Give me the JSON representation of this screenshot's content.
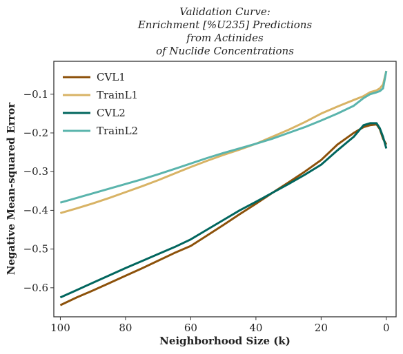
{
  "chart_data": {
    "type": "line",
    "title_lines": [
      "Validation Curve:",
      "Enrichment [%U235] Predictions",
      "from Actinides",
      "of Nuclide Concentrations"
    ],
    "xlabel": "Neighborhood Size (k)",
    "ylabel": "Negative Mean-squared Error",
    "xlim": [
      102,
      -3
    ],
    "ylim": [
      -0.675,
      -0.015
    ],
    "x_inverted": true,
    "xticks": [
      100,
      80,
      60,
      40,
      20,
      0
    ],
    "xtick_labels": [
      "100",
      "80",
      "60",
      "40",
      "20",
      "0"
    ],
    "yticks": [
      -0.1,
      -0.2,
      -0.3,
      -0.4,
      -0.5,
      -0.6
    ],
    "ytick_labels": [
      "−0.1",
      "−0.2",
      "−0.3",
      "−0.4",
      "−0.5",
      "−0.6"
    ],
    "grid": false,
    "legend_position": "top-left",
    "series": [
      {
        "name": "CVL1",
        "color": "#8c510a",
        "x": [
          100,
          95,
          90,
          85,
          80,
          75,
          70,
          65,
          60,
          55,
          50,
          45,
          40,
          35,
          30,
          25,
          20,
          15,
          10,
          7,
          5,
          3,
          2,
          1,
          0
        ],
        "y": [
          -0.645,
          -0.625,
          -0.607,
          -0.588,
          -0.569,
          -0.55,
          -0.53,
          -0.51,
          -0.492,
          -0.465,
          -0.438,
          -0.41,
          -0.383,
          -0.355,
          -0.328,
          -0.3,
          -0.27,
          -0.23,
          -0.2,
          -0.185,
          -0.18,
          -0.178,
          -0.19,
          -0.215,
          -0.23
        ]
      },
      {
        "name": "TrainL1",
        "color": "#d8b365",
        "x": [
          100,
          95,
          90,
          85,
          80,
          75,
          70,
          65,
          60,
          55,
          50,
          45,
          40,
          35,
          30,
          25,
          20,
          15,
          10,
          7,
          5,
          3,
          2,
          1,
          0
        ],
        "y": [
          -0.407,
          -0.395,
          -0.382,
          -0.368,
          -0.353,
          -0.338,
          -0.322,
          -0.305,
          -0.288,
          -0.272,
          -0.257,
          -0.243,
          -0.228,
          -0.21,
          -0.192,
          -0.172,
          -0.15,
          -0.132,
          -0.115,
          -0.105,
          -0.095,
          -0.09,
          -0.085,
          -0.075,
          -0.04
        ]
      },
      {
        "name": "CVL2",
        "color": "#01665e",
        "x": [
          100,
          95,
          90,
          85,
          80,
          75,
          70,
          65,
          60,
          55,
          50,
          45,
          40,
          35,
          30,
          25,
          20,
          15,
          10,
          7,
          5,
          3,
          2,
          1,
          0
        ],
        "y": [
          -0.625,
          -0.606,
          -0.587,
          -0.568,
          -0.549,
          -0.531,
          -0.513,
          -0.495,
          -0.475,
          -0.45,
          -0.425,
          -0.4,
          -0.378,
          -0.355,
          -0.332,
          -0.308,
          -0.282,
          -0.245,
          -0.21,
          -0.18,
          -0.175,
          -0.175,
          -0.188,
          -0.21,
          -0.24
        ]
      },
      {
        "name": "TrainL2",
        "color": "#5ab4ac",
        "x": [
          100,
          95,
          90,
          85,
          80,
          75,
          70,
          65,
          60,
          55,
          50,
          45,
          40,
          35,
          30,
          25,
          20,
          15,
          10,
          7,
          5,
          3,
          2,
          1,
          0
        ],
        "y": [
          -0.38,
          -0.368,
          -0.356,
          -0.344,
          -0.332,
          -0.32,
          -0.307,
          -0.293,
          -0.279,
          -0.265,
          -0.252,
          -0.24,
          -0.228,
          -0.215,
          -0.2,
          -0.185,
          -0.168,
          -0.15,
          -0.13,
          -0.11,
          -0.1,
          -0.095,
          -0.092,
          -0.085,
          -0.04
        ]
      }
    ]
  }
}
